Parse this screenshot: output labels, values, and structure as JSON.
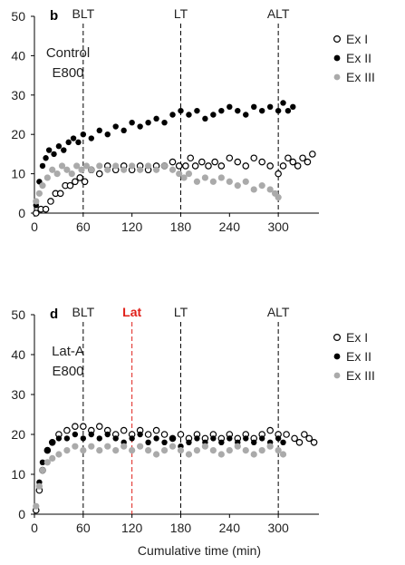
{
  "chart_data": [
    {
      "type": "scatter",
      "panel_label": "b",
      "annotation": [
        "Control",
        "E800"
      ],
      "xlim": [
        0,
        350
      ],
      "ylim": [
        0,
        50
      ],
      "xticks": [
        "0",
        "60",
        "120",
        "180",
        "240",
        "300"
      ],
      "xtick_values": [
        0,
        60,
        120,
        180,
        240,
        300
      ],
      "yticks": [
        "0",
        "10",
        "20",
        "30",
        "40",
        "50"
      ],
      "ytick_values": [
        0,
        10,
        20,
        30,
        40,
        50
      ],
      "markers": [
        {
          "label": "BLT",
          "x": 60,
          "color": "#000000"
        },
        {
          "label": "LT",
          "x": 180,
          "color": "#000000"
        },
        {
          "label": "ALT",
          "x": 300,
          "color": "#000000"
        }
      ],
      "legend_position": "top-right",
      "series": [
        {
          "name": "Ex I",
          "style": "open",
          "color": "#000000",
          "x": [
            2,
            8,
            14,
            20,
            26,
            32,
            38,
            44,
            50,
            56,
            62,
            70,
            80,
            90,
            100,
            110,
            120,
            130,
            140,
            150,
            160,
            170,
            178,
            186,
            192,
            198,
            206,
            214,
            222,
            230,
            240,
            250,
            260,
            270,
            280,
            290,
            300,
            306,
            312,
            318,
            324,
            330,
            336,
            342
          ],
          "y": [
            0,
            1,
            1,
            3,
            5,
            5,
            7,
            7,
            8,
            9,
            8,
            11,
            10,
            12,
            11,
            12,
            11,
            12,
            11,
            12,
            12,
            13,
            12,
            12,
            14,
            12,
            13,
            12,
            13,
            12,
            14,
            13,
            12,
            14,
            13,
            12,
            10,
            12,
            14,
            13,
            12,
            14,
            13,
            15
          ]
        },
        {
          "name": "Ex II",
          "style": "filled",
          "color": "#000000",
          "x": [
            2,
            6,
            10,
            14,
            18,
            24,
            30,
            36,
            42,
            48,
            54,
            60,
            70,
            80,
            90,
            100,
            110,
            120,
            130,
            140,
            150,
            160,
            170,
            180,
            190,
            200,
            210,
            220,
            230,
            240,
            250,
            260,
            270,
            280,
            290,
            300,
            306,
            312,
            318
          ],
          "y": [
            2,
            8,
            12,
            14,
            16,
            15,
            17,
            16,
            18,
            19,
            18,
            20,
            19,
            21,
            20,
            22,
            21,
            23,
            22,
            23,
            24,
            23,
            25,
            26,
            25,
            26,
            24,
            25,
            26,
            27,
            26,
            25,
            27,
            26,
            27,
            26,
            28,
            26,
            27
          ]
        },
        {
          "name": "Ex III",
          "style": "gray",
          "color": "#aaaaaa",
          "x": [
            2,
            6,
            10,
            16,
            22,
            28,
            34,
            40,
            46,
            52,
            58,
            64,
            70,
            80,
            90,
            100,
            110,
            120,
            130,
            140,
            150,
            160,
            170,
            178,
            184,
            190,
            200,
            210,
            220,
            230,
            240,
            250,
            260,
            270,
            280,
            290,
            296,
            300
          ],
          "y": [
            3,
            5,
            7,
            9,
            11,
            10,
            12,
            11,
            10,
            12,
            11,
            12,
            11,
            12,
            11,
            12,
            11,
            12,
            11,
            12,
            11,
            12,
            11,
            10,
            9,
            10,
            8,
            9,
            8,
            9,
            8,
            7,
            8,
            6,
            7,
            6,
            5,
            4
          ]
        }
      ]
    },
    {
      "type": "scatter",
      "panel_label": "d",
      "annotation": [
        "Lat-A",
        "E800"
      ],
      "xlim": [
        0,
        350
      ],
      "ylim": [
        0,
        50
      ],
      "xticks": [
        "0",
        "60",
        "120",
        "180",
        "240",
        "300"
      ],
      "xtick_values": [
        0,
        60,
        120,
        180,
        240,
        300
      ],
      "yticks": [
        "0",
        "10",
        "20",
        "30",
        "40",
        "50"
      ],
      "ytick_values": [
        0,
        10,
        20,
        30,
        40,
        50
      ],
      "markers": [
        {
          "label": "BLT",
          "x": 60,
          "color": "#000000"
        },
        {
          "label": "Lat",
          "x": 120,
          "color": "#e0201a"
        },
        {
          "label": "LT",
          "x": 180,
          "color": "#000000"
        },
        {
          "label": "ALT",
          "x": 300,
          "color": "#000000"
        }
      ],
      "legend_position": "top-right",
      "xlabel": "Cumulative time (min)",
      "series": [
        {
          "name": "Ex I",
          "style": "open",
          "color": "#000000",
          "x": [
            2,
            6,
            10,
            16,
            22,
            30,
            40,
            50,
            60,
            70,
            80,
            90,
            100,
            110,
            120,
            130,
            140,
            150,
            160,
            170,
            180,
            190,
            200,
            210,
            220,
            230,
            240,
            250,
            260,
            270,
            280,
            290,
            300,
            310,
            320,
            326,
            332,
            338,
            344
          ],
          "y": [
            1,
            6,
            11,
            16,
            18,
            20,
            21,
            22,
            22,
            21,
            22,
            21,
            20,
            21,
            20,
            21,
            20,
            21,
            20,
            19,
            20,
            19,
            20,
            19,
            20,
            19,
            20,
            19,
            20,
            19,
            20,
            21,
            20,
            20,
            19,
            18,
            20,
            19,
            18
          ]
        },
        {
          "name": "Ex II",
          "style": "filled",
          "color": "#000000",
          "x": [
            2,
            6,
            10,
            16,
            22,
            30,
            40,
            50,
            60,
            70,
            80,
            90,
            100,
            110,
            120,
            130,
            140,
            150,
            160,
            170,
            180,
            190,
            200,
            210,
            220,
            230,
            240,
            250,
            260,
            270,
            280,
            290,
            300,
            306
          ],
          "y": [
            2,
            8,
            13,
            16,
            18,
            19,
            19,
            20,
            19,
            20,
            19,
            20,
            19,
            18,
            19,
            20,
            18,
            19,
            18,
            19,
            17,
            18,
            19,
            18,
            19,
            18,
            19,
            18,
            19,
            18,
            19,
            18,
            19,
            18
          ]
        },
        {
          "name": "Ex III",
          "style": "gray",
          "color": "#aaaaaa",
          "x": [
            2,
            6,
            10,
            16,
            22,
            30,
            40,
            50,
            60,
            70,
            80,
            90,
            100,
            110,
            120,
            130,
            140,
            150,
            160,
            170,
            180,
            190,
            200,
            210,
            220,
            230,
            240,
            250,
            260,
            270,
            280,
            290,
            300,
            306
          ],
          "y": [
            2,
            7,
            11,
            13,
            14,
            15,
            16,
            17,
            16,
            17,
            16,
            17,
            16,
            17,
            16,
            17,
            16,
            15,
            16,
            17,
            16,
            15,
            16,
            17,
            16,
            15,
            16,
            17,
            16,
            15,
            16,
            17,
            16,
            15
          ]
        }
      ]
    }
  ]
}
